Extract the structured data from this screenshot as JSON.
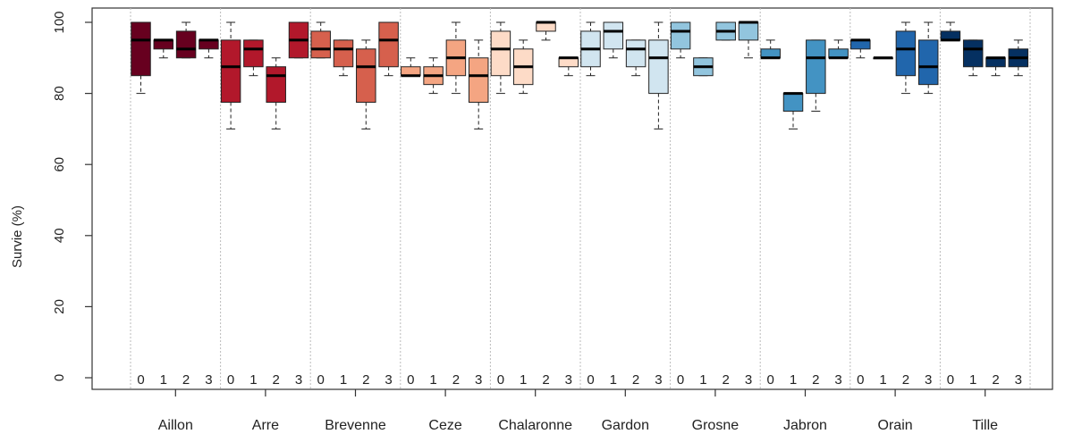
{
  "chart_data": {
    "type": "boxplot",
    "ylabel": "Survie (%)",
    "xlabel": "",
    "title": "",
    "ylim": [
      0,
      100
    ],
    "yticks": [
      0,
      20,
      40,
      60,
      80,
      100
    ],
    "grid": "vertical dotted separators between groups",
    "box_labels": [
      "0",
      "1",
      "2",
      "3"
    ],
    "groups": [
      {
        "name": "Aillon",
        "color": "#67001F",
        "boxes": [
          {
            "label": "0",
            "min": 80,
            "q1": 85,
            "median": 95,
            "q3": 100,
            "max": 100
          },
          {
            "label": "1",
            "min": 90,
            "q1": 92.5,
            "median": 95,
            "q3": 95,
            "max": 95
          },
          {
            "label": "2",
            "min": 90,
            "q1": 90,
            "median": 92.5,
            "q3": 97.5,
            "max": 100
          },
          {
            "label": "3",
            "min": 90,
            "q1": 92.5,
            "median": 95,
            "q3": 95,
            "max": 95
          }
        ]
      },
      {
        "name": "Arre",
        "color": "#B2182B",
        "boxes": [
          {
            "label": "0",
            "min": 70,
            "q1": 77.5,
            "median": 87.5,
            "q3": 95,
            "max": 100
          },
          {
            "label": "1",
            "min": 85,
            "q1": 87.5,
            "median": 92.5,
            "q3": 95,
            "max": 95
          },
          {
            "label": "2",
            "min": 70,
            "q1": 77.5,
            "median": 85,
            "q3": 87.5,
            "max": 90
          },
          {
            "label": "3",
            "min": 90,
            "q1": 90,
            "median": 95,
            "q3": 100,
            "max": 100
          }
        ]
      },
      {
        "name": "Brevenne",
        "color": "#D6604D",
        "boxes": [
          {
            "label": "0",
            "min": 90,
            "q1": 90,
            "median": 92.5,
            "q3": 97.5,
            "max": 100
          },
          {
            "label": "1",
            "min": 85,
            "q1": 87.5,
            "median": 92.5,
            "q3": 95,
            "max": 95
          },
          {
            "label": "2",
            "min": 70,
            "q1": 77.5,
            "median": 87.5,
            "q3": 92.5,
            "max": 95
          },
          {
            "label": "3",
            "min": 85,
            "q1": 87.5,
            "median": 95,
            "q3": 100,
            "max": 100
          }
        ]
      },
      {
        "name": "Ceze",
        "color": "#F4A582",
        "boxes": [
          {
            "label": "0",
            "min": 85,
            "q1": 85,
            "median": 85,
            "q3": 87.5,
            "max": 90
          },
          {
            "label": "1",
            "min": 80,
            "q1": 82.5,
            "median": 85,
            "q3": 87.5,
            "max": 90
          },
          {
            "label": "2",
            "min": 80,
            "q1": 85,
            "median": 90,
            "q3": 95,
            "max": 100
          },
          {
            "label": "3",
            "min": 70,
            "q1": 77.5,
            "median": 85,
            "q3": 90,
            "max": 95
          }
        ]
      },
      {
        "name": "Chalaronne",
        "color": "#FDDBC7",
        "boxes": [
          {
            "label": "0",
            "min": 80,
            "q1": 85,
            "median": 92.5,
            "q3": 97.5,
            "max": 100
          },
          {
            "label": "1",
            "min": 80,
            "q1": 82.5,
            "median": 87.5,
            "q3": 92.5,
            "max": 95
          },
          {
            "label": "2",
            "min": 95,
            "q1": 97.5,
            "median": 100,
            "q3": 100,
            "max": 100
          },
          {
            "label": "3",
            "min": 85,
            "q1": 87.5,
            "median": 90,
            "q3": 90,
            "max": 90
          }
        ]
      },
      {
        "name": "Gardon",
        "color": "#D1E5F0",
        "boxes": [
          {
            "label": "0",
            "min": 85,
            "q1": 87.5,
            "median": 92.5,
            "q3": 97.5,
            "max": 100
          },
          {
            "label": "1",
            "min": 90,
            "q1": 92.5,
            "median": 97.5,
            "q3": 100,
            "max": 100
          },
          {
            "label": "2",
            "min": 85,
            "q1": 87.5,
            "median": 92.5,
            "q3": 95,
            "max": 95
          },
          {
            "label": "3",
            "min": 70,
            "q1": 80,
            "median": 90,
            "q3": 95,
            "max": 100
          }
        ]
      },
      {
        "name": "Grosne",
        "color": "#92C5DE",
        "boxes": [
          {
            "label": "0",
            "min": 90,
            "q1": 92.5,
            "median": 97.5,
            "q3": 100,
            "max": 100
          },
          {
            "label": "1",
            "min": 85,
            "q1": 85,
            "median": 87.5,
            "q3": 90,
            "max": 90
          },
          {
            "label": "2",
            "min": 95,
            "q1": 95,
            "median": 97.5,
            "q3": 100,
            "max": 100
          },
          {
            "label": "3",
            "min": 90,
            "q1": 95,
            "median": 100,
            "q3": 100,
            "max": 100
          }
        ]
      },
      {
        "name": "Jabron",
        "color": "#4393C3",
        "boxes": [
          {
            "label": "0",
            "min": 90,
            "q1": 90,
            "median": 90,
            "q3": 92.5,
            "max": 95
          },
          {
            "label": "1",
            "min": 70,
            "q1": 75,
            "median": 80,
            "q3": 80,
            "max": 80
          },
          {
            "label": "2",
            "min": 75,
            "q1": 80,
            "median": 90,
            "q3": 95,
            "max": 95
          },
          {
            "label": "3",
            "min": 90,
            "q1": 90,
            "median": 90,
            "q3": 92.5,
            "max": 95
          }
        ]
      },
      {
        "name": "Orain",
        "color": "#2166AC",
        "boxes": [
          {
            "label": "0",
            "min": 90,
            "q1": 92.5,
            "median": 95,
            "q3": 95,
            "max": 95
          },
          {
            "label": "1",
            "min": 90,
            "q1": 90,
            "median": 90,
            "q3": 90,
            "max": 90
          },
          {
            "label": "2",
            "min": 80,
            "q1": 85,
            "median": 92.5,
            "q3": 97.5,
            "max": 100
          },
          {
            "label": "3",
            "min": 80,
            "q1": 82.5,
            "median": 87.5,
            "q3": 95,
            "max": 100
          }
        ]
      },
      {
        "name": "Tille",
        "color": "#053061",
        "boxes": [
          {
            "label": "0",
            "min": 95,
            "q1": 95,
            "median": 95,
            "q3": 97.5,
            "max": 100
          },
          {
            "label": "1",
            "min": 85,
            "q1": 87.5,
            "median": 92.5,
            "q3": 95,
            "max": 95
          },
          {
            "label": "2",
            "min": 85,
            "q1": 87.5,
            "median": 90,
            "q3": 90,
            "max": 90
          },
          {
            "label": "3",
            "min": 85,
            "q1": 87.5,
            "median": 90,
            "q3": 92.5,
            "max": 95
          }
        ]
      }
    ]
  }
}
